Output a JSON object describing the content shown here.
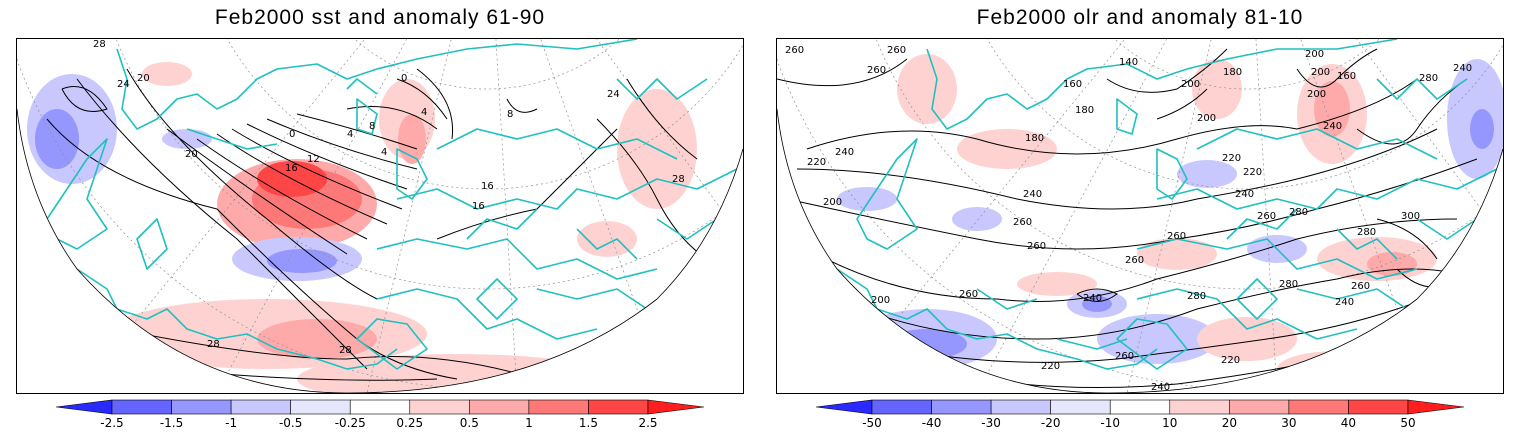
{
  "panels": [
    {
      "id": "sst",
      "title": "Feb2000 sst and anomaly 61-90",
      "contour_labels": [
        "28",
        "24",
        "20",
        "20",
        "12",
        "16",
        "8",
        "4",
        "0",
        "0",
        "4",
        "16",
        "16",
        "24",
        "28",
        "28",
        "28",
        "4",
        "8"
      ],
      "colorbar": {
        "ticks": [
          "-2.5",
          "-1.5",
          "-1",
          "-0.5",
          "-0.25",
          "0.25",
          "0.5",
          "1",
          "1.5",
          "2.5"
        ],
        "colors": [
          "#2a2aff",
          "#6464ff",
          "#9696ff",
          "#c8c8ff",
          "#e6e6ff",
          "#ffffff",
          "#ffd2d2",
          "#ffaaaa",
          "#ff7878",
          "#ff4646",
          "#ff1e1e"
        ]
      }
    },
    {
      "id": "olr",
      "title": "Feb2000 olr and anomaly 81-10",
      "contour_labels": [
        "260",
        "260",
        "260",
        "240",
        "220",
        "160",
        "180",
        "140",
        "200",
        "180",
        "200",
        "200",
        "180",
        "160",
        "200",
        "280",
        "240",
        "240",
        "220",
        "200",
        "220",
        "240",
        "260",
        "260",
        "260",
        "280",
        "300",
        "280",
        "260",
        "240",
        "200",
        "260",
        "240",
        "280",
        "280",
        "260",
        "240",
        "220",
        "260",
        "200",
        "220",
        "240",
        "260"
      ],
      "colorbar": {
        "ticks": [
          "-50",
          "-40",
          "-30",
          "-20",
          "-10",
          "10",
          "20",
          "30",
          "40",
          "50"
        ],
        "colors": [
          "#2a2aff",
          "#6464ff",
          "#9696ff",
          "#c8c8ff",
          "#e6e6ff",
          "#ffffff",
          "#ffd2d2",
          "#ffaaaa",
          "#ff7878",
          "#ff4646",
          "#ff1e1e"
        ]
      }
    }
  ],
  "colors": {
    "coastline": "#20c0c0",
    "contour": "#000000",
    "grid": "#909090"
  }
}
